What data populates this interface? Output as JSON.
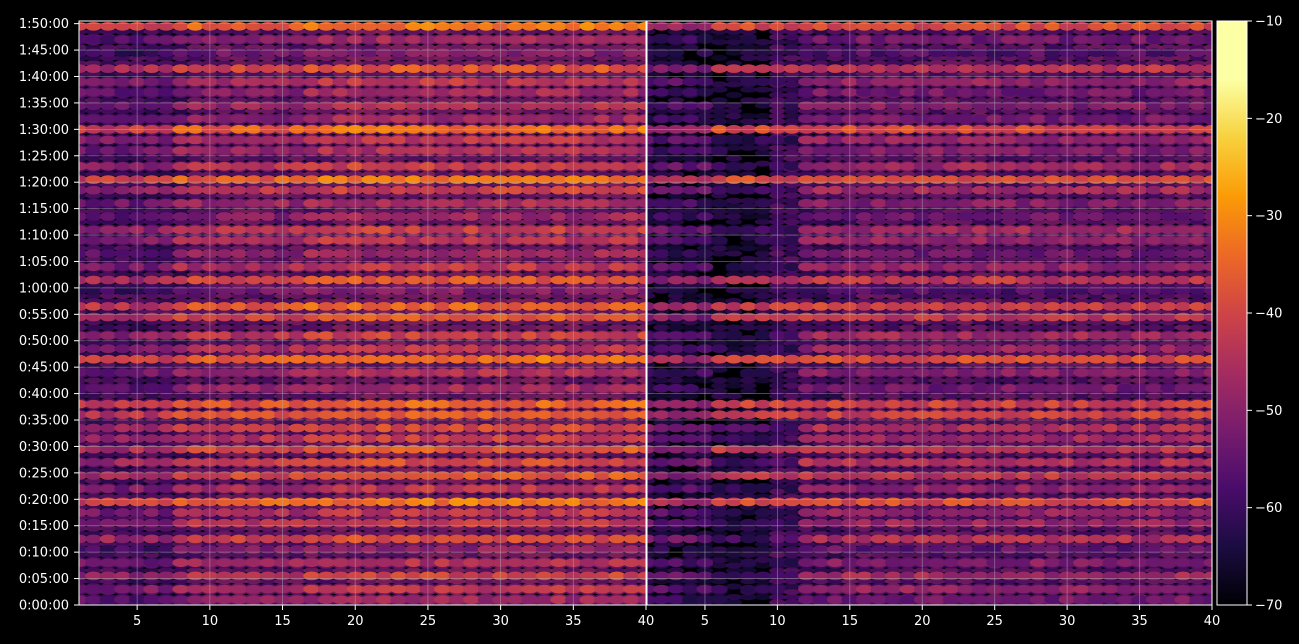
{
  "chart_data": {
    "type": "heatmap",
    "title": "",
    "panels": [
      {
        "name": "",
        "x_ticks": [
          5,
          10,
          15,
          20,
          25,
          30,
          35,
          40
        ],
        "x_range": [
          1,
          40
        ]
      },
      {
        "name": "",
        "x_ticks": [
          5,
          10,
          15,
          20,
          25,
          30,
          35,
          40
        ],
        "x_range": [
          1,
          40
        ]
      }
    ],
    "y_tick_labels": [
      "0:00:00",
      "0:05:00",
      "0:10:00",
      "0:15:00",
      "0:20:00",
      "0:25:00",
      "0:30:00",
      "0:35:00",
      "0:40:00",
      "0:45:00",
      "0:50:00",
      "0:55:00",
      "1:00:00",
      "1:05:00",
      "1:10:00",
      "1:15:00",
      "1:20:00",
      "1:25:00",
      "1:30:00",
      "1:35:00",
      "1:40:00",
      "1:45:00",
      "1:50:00"
    ],
    "y_range_minutes": [
      0,
      110.5
    ],
    "colorbar": {
      "ticks": [
        -70,
        -60,
        -50,
        -40,
        -30,
        -20,
        -10
      ],
      "range": [
        -70,
        -10
      ],
      "colormap": "inferno"
    },
    "grid": true,
    "hot_rows_minutes": [
      {
        "t": 1.0,
        "v": -50
      },
      {
        "t": 3.0,
        "v": -46
      },
      {
        "t": 5.5,
        "v": -44
      },
      {
        "t": 8.0,
        "v": -48
      },
      {
        "t": 10.5,
        "v": -52
      },
      {
        "t": 12.5,
        "v": -42
      },
      {
        "t": 15.5,
        "v": -45
      },
      {
        "t": 17.5,
        "v": -46
      },
      {
        "t": 19.5,
        "v": -36
      },
      {
        "t": 22.0,
        "v": -46
      },
      {
        "t": 24.5,
        "v": -40
      },
      {
        "t": 27.0,
        "v": -42
      },
      {
        "t": 29.5,
        "v": -40
      },
      {
        "t": 31.5,
        "v": -44
      },
      {
        "t": 33.5,
        "v": -42
      },
      {
        "t": 36.0,
        "v": -38
      },
      {
        "t": 38.0,
        "v": -38
      },
      {
        "t": 41.0,
        "v": -50
      },
      {
        "t": 44.0,
        "v": -48
      },
      {
        "t": 46.5,
        "v": -36
      },
      {
        "t": 48.5,
        "v": -46
      },
      {
        "t": 51.0,
        "v": -44
      },
      {
        "t": 54.5,
        "v": -40
      },
      {
        "t": 56.5,
        "v": -38
      },
      {
        "t": 59.5,
        "v": -54
      },
      {
        "t": 61.5,
        "v": -40
      },
      {
        "t": 64.0,
        "v": -46
      },
      {
        "t": 66.5,
        "v": -50
      },
      {
        "t": 69.0,
        "v": -46
      },
      {
        "t": 71.0,
        "v": -44
      },
      {
        "t": 73.5,
        "v": -50
      },
      {
        "t": 76.0,
        "v": -48
      },
      {
        "t": 78.5,
        "v": -44
      },
      {
        "t": 80.5,
        "v": -36
      },
      {
        "t": 83.0,
        "v": -44
      },
      {
        "t": 86.0,
        "v": -48
      },
      {
        "t": 88.0,
        "v": -46
      },
      {
        "t": 90.0,
        "v": -36
      },
      {
        "t": 92.0,
        "v": -50
      },
      {
        "t": 94.5,
        "v": -48
      },
      {
        "t": 97.0,
        "v": -50
      },
      {
        "t": 99.0,
        "v": -46
      },
      {
        "t": 101.5,
        "v": -40
      },
      {
        "t": 104.5,
        "v": -54
      },
      {
        "t": 107.0,
        "v": -50
      },
      {
        "t": 109.5,
        "v": -36
      }
    ],
    "xlabel": "",
    "ylabel": ""
  }
}
